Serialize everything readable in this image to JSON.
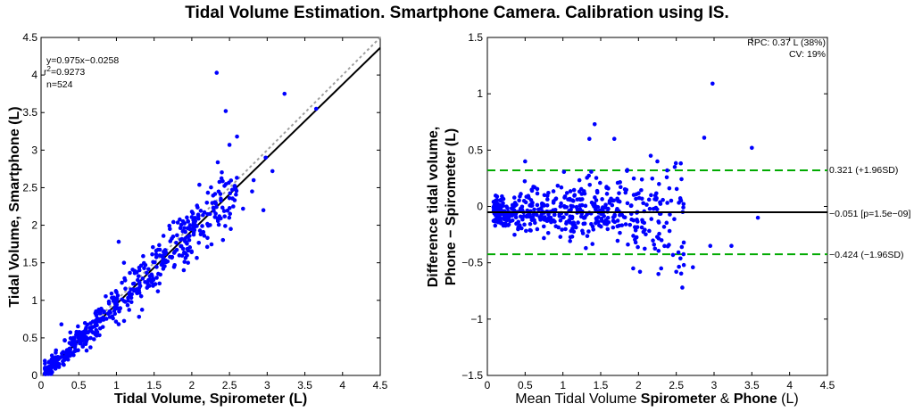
{
  "figure_title": "Tidal Volume Estimation. Smartphone Camera. Calibration using IS.",
  "chart_data": [
    {
      "type": "scatter",
      "name": "regression",
      "title": "",
      "xlabel": "Tidal Volume, Spirometer (L)",
      "ylabel": "Tidal Volume, Smartphone (L)",
      "xlim": [
        0,
        4.5
      ],
      "ylim": [
        0,
        4.5
      ],
      "xticks": [
        "0",
        "0.5",
        "1",
        "1.5",
        "2",
        "2.5",
        "3",
        "3.5",
        "4",
        "4.5"
      ],
      "yticks": [
        "0",
        "0.5",
        "1",
        "1.5",
        "2",
        "2.5",
        "3",
        "3.5",
        "4",
        "4.5"
      ],
      "fit_line": {
        "slope": 0.975,
        "intercept": -0.0258
      },
      "identity_line": {
        "slope": 1,
        "intercept": 0
      },
      "annotations": {
        "equation": "y=0.975x−0.0258",
        "r2_prefix": "r",
        "r2_sup": "2",
        "r2_value": "=0.9273",
        "n": "n=524"
      },
      "outliers": [
        {
          "x": 2.33,
          "y": 4.03
        },
        {
          "x": 3.23,
          "y": 3.75
        },
        {
          "x": 3.65,
          "y": 3.55
        },
        {
          "x": 2.45,
          "y": 3.52
        },
        {
          "x": 2.6,
          "y": 3.18
        },
        {
          "x": 2.5,
          "y": 3.07
        },
        {
          "x": 2.98,
          "y": 2.9
        },
        {
          "x": 3.07,
          "y": 2.72
        },
        {
          "x": 2.95,
          "y": 2.2
        },
        {
          "x": 2.55,
          "y": 2.25
        },
        {
          "x": 2.68,
          "y": 2.22
        },
        {
          "x": 2.82,
          "y": 2.6
        },
        {
          "x": 2.8,
          "y": 2.45
        },
        {
          "x": 0.27,
          "y": 0.68
        },
        {
          "x": 1.03,
          "y": 1.78
        },
        {
          "x": 1.1,
          "y": 1.5
        },
        {
          "x": 1.3,
          "y": 0.78
        },
        {
          "x": 1.55,
          "y": 1.12
        },
        {
          "x": 1.95,
          "y": 1.5
        },
        {
          "x": 2.2,
          "y": 2.3
        }
      ],
      "cloud": {
        "n": 504,
        "x_range": [
          0.05,
          2.6
        ],
        "relation": "y ≈ 0.975x − 0.0258 with scatter ~0.17 L"
      }
    },
    {
      "type": "scatter",
      "name": "bland-altman",
      "title": "",
      "xlabel_normal": "Mean Tidal Volume ",
      "xlabel_bold1": "Spirometer",
      "xlabel_mid": " & ",
      "xlabel_bold2": " Phone",
      "xlabel_end": " (L)",
      "ylabel_line1": "Difference tidal volume,",
      "ylabel_line2": "Phone − Spirometer (L)",
      "xlim": [
        0,
        4.5
      ],
      "ylim": [
        -1.5,
        1.5
      ],
      "xticks": [
        "0",
        "0.5",
        "1",
        "1.5",
        "2",
        "2.5",
        "3",
        "3.5",
        "4",
        "4.5"
      ],
      "yticks": [
        "−1.5",
        "−1",
        "−0.5",
        "0",
        "0.5",
        "1",
        "1.5"
      ],
      "mean_line": {
        "value": -0.051,
        "label": "−0.051 [p=1.5e−09]"
      },
      "upper_loa": {
        "value": 0.321,
        "label": "0.321 (+1.96SD)"
      },
      "lower_loa": {
        "value": -0.424,
        "label": "−0.424 (−1.96SD)"
      },
      "rpc_text": "RPC: 0.37 L (38%)",
      "cv_text": "CV: 19%",
      "outliers": [
        {
          "x": 2.98,
          "y": 1.09
        },
        {
          "x": 1.42,
          "y": 0.73
        },
        {
          "x": 1.35,
          "y": 0.6
        },
        {
          "x": 1.68,
          "y": 0.6
        },
        {
          "x": 2.87,
          "y": 0.61
        },
        {
          "x": 3.5,
          "y": 0.52
        },
        {
          "x": 3.58,
          "y": -0.1
        },
        {
          "x": 2.58,
          "y": -0.72
        },
        {
          "x": 2.5,
          "y": -0.58
        },
        {
          "x": 1.93,
          "y": -0.55
        },
        {
          "x": 2.02,
          "y": -0.58
        },
        {
          "x": 2.3,
          "y": -0.55
        },
        {
          "x": 2.6,
          "y": -0.52
        },
        {
          "x": 2.72,
          "y": -0.54
        },
        {
          "x": 2.38,
          "y": 0.32
        },
        {
          "x": 2.25,
          "y": 0.4
        },
        {
          "x": 0.5,
          "y": 0.4
        },
        {
          "x": 2.48,
          "y": 0.35
        },
        {
          "x": 3.23,
          "y": -0.35
        },
        {
          "x": 2.95,
          "y": -0.35
        }
      ],
      "cloud": {
        "n": 504,
        "x_range": [
          0.08,
          2.6
        ],
        "relation": "difference centred near −0.05 with spread widening as volume increases"
      }
    }
  ],
  "colors": {
    "points": "#0000ff",
    "fit": "#000000",
    "identity": "#a0a0a0",
    "loa": "#00aa00",
    "axes": "#000000"
  }
}
